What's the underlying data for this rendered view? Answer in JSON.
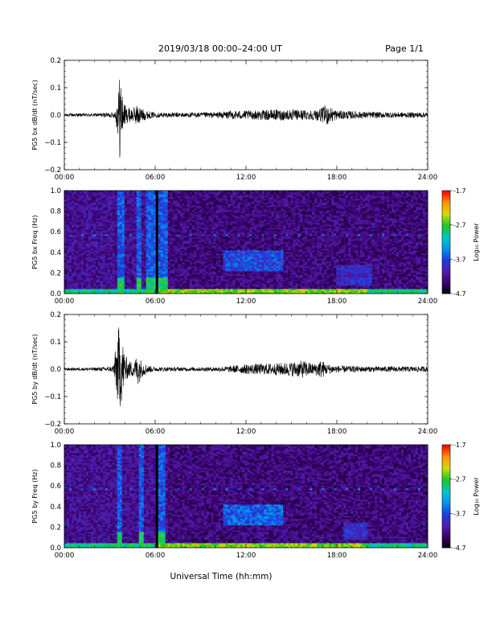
{
  "header": {
    "title": "2019/03/18   00:00–24:00 UT",
    "page": "Page 1/1"
  },
  "footer": {
    "xlabel": "Universal Time (hh:mm)"
  },
  "colors": {
    "waveform": "#000000",
    "spectrogram_background": "#3a1b8c"
  },
  "chart_data": [
    {
      "type": "line",
      "ylabel": "PG5 bx dB/dt (nT/sec)",
      "xlim_hours": [
        0,
        24
      ],
      "ylim": [
        -0.2,
        0.2
      ],
      "ytick_labels": [
        "0.2",
        "0.1",
        "0.0",
        "−0.1",
        "−0.2"
      ],
      "yticks": [
        0.2,
        0.1,
        0.0,
        -0.1,
        -0.2
      ],
      "xtick_labels": [
        "00:00",
        "06:00",
        "12:00",
        "18:00",
        "24:00"
      ],
      "xticks_hours": [
        0,
        6,
        12,
        18,
        24
      ],
      "envelope": {
        "x_hours": [
          0,
          2,
          3.3,
          3.5,
          3.6,
          3.7,
          3.8,
          3.9,
          4.1,
          4.5,
          4.9,
          5.1,
          5.5,
          6,
          8,
          10,
          11,
          12,
          14,
          15,
          16.5,
          17,
          17.3,
          18,
          20,
          22,
          24
        ],
        "amplitude": [
          0.006,
          0.006,
          0.01,
          0.06,
          0.12,
          0.19,
          0.1,
          0.05,
          0.03,
          0.025,
          0.04,
          0.025,
          0.015,
          0.009,
          0.009,
          0.01,
          0.016,
          0.016,
          0.02,
          0.02,
          0.018,
          0.025,
          0.04,
          0.017,
          0.012,
          0.01,
          0.01
        ]
      }
    },
    {
      "type": "heatmap",
      "ylabel": "PG5 bx Freq (Hz)",
      "xlim_hours": [
        0,
        24
      ],
      "ylim": [
        0,
        1.0
      ],
      "ytick_labels": [
        "1.0",
        "0.8",
        "0.6",
        "0.4",
        "0.2",
        "0.0"
      ],
      "yticks": [
        1.0,
        0.8,
        0.6,
        0.4,
        0.2,
        0.0
      ],
      "xtick_labels": [
        "00:00",
        "06:00",
        "12:00",
        "18:00",
        "24:00"
      ],
      "xticks_hours": [
        0,
        6,
        12,
        18,
        24
      ],
      "colorbar": {
        "label": "Log₁₀ Power",
        "range": [
          -4.7,
          -1.7
        ],
        "tick_labels": [
          "-1.7",
          "-2.7",
          "-3.7",
          "-4.7"
        ],
        "ticks": [
          -1.7,
          -2.7,
          -3.7,
          -4.7
        ]
      },
      "features": {
        "broadband_bursts_hours": [
          [
            3.5,
            3.9
          ],
          [
            4.8,
            5.1
          ],
          [
            5.4,
            6.9
          ]
        ],
        "data_gap_hours": [
          [
            6.0,
            6.15
          ]
        ],
        "line_frequency_hz": 0.57,
        "low_freq_band_hz": [
          0.0,
          0.05
        ],
        "enhanced_regions": [
          {
            "x_hours": [
              10.5,
              14.5
            ],
            "y_hz": [
              0.22,
              0.42
            ],
            "level": -3.4
          },
          {
            "x_hours": [
              18.0,
              20.3
            ],
            "y_hz": [
              0.08,
              0.28
            ],
            "level": -3.6
          }
        ]
      }
    },
    {
      "type": "line",
      "ylabel": "PG5 by dB/dt (nT/sec)",
      "xlim_hours": [
        0,
        24
      ],
      "ylim": [
        -0.2,
        0.2
      ],
      "ytick_labels": [
        "0.2",
        "0.1",
        "0.0",
        "−0.1",
        "−0.2"
      ],
      "yticks": [
        0.2,
        0.1,
        0.0,
        -0.1,
        -0.2
      ],
      "xtick_labels": [
        "00:00",
        "06:00",
        "12:00",
        "18:00",
        "24:00"
      ],
      "xticks_hours": [
        0,
        6,
        12,
        18,
        24
      ],
      "envelope": {
        "x_hours": [
          0,
          2,
          3.2,
          3.4,
          3.6,
          3.8,
          4.0,
          4.2,
          4.6,
          4.9,
          5.1,
          5.5,
          6,
          8,
          10,
          11,
          12,
          14,
          15,
          15.8,
          16.5,
          17,
          17.3,
          18,
          20,
          22,
          24
        ],
        "amplitude": [
          0.005,
          0.006,
          0.01,
          0.08,
          0.16,
          0.12,
          0.06,
          0.03,
          0.03,
          0.06,
          0.03,
          0.015,
          0.008,
          0.007,
          0.008,
          0.012,
          0.018,
          0.022,
          0.026,
          0.032,
          0.02,
          0.035,
          0.02,
          0.013,
          0.01,
          0.01,
          0.01
        ]
      }
    },
    {
      "type": "heatmap",
      "ylabel": "PG5 by Freq (Hz)",
      "xlim_hours": [
        0,
        24
      ],
      "ylim": [
        0,
        1.0
      ],
      "ytick_labels": [
        "1.0",
        "0.8",
        "0.6",
        "0.4",
        "0.2",
        "0.0"
      ],
      "yticks": [
        1.0,
        0.8,
        0.6,
        0.4,
        0.2,
        0.0
      ],
      "xtick_labels": [
        "00:00",
        "06:00",
        "12:00",
        "18:00",
        "24:00"
      ],
      "xticks_hours": [
        0,
        6,
        12,
        18,
        24
      ],
      "colorbar": {
        "label": "Log₁₀ Power",
        "range": [
          -4.7,
          -1.7
        ],
        "tick_labels": [
          "-1.7",
          "-2.7",
          "-3.7",
          "-4.7"
        ],
        "ticks": [
          -1.7,
          -2.7,
          -3.7,
          -4.7
        ]
      },
      "features": {
        "broadband_bursts_hours": [
          [
            3.5,
            3.8
          ],
          [
            5.0,
            5.2
          ],
          [
            6.2,
            6.6
          ]
        ],
        "data_gap_hours": [
          [
            6.0,
            6.15
          ]
        ],
        "line_frequency_hz": 0.57,
        "low_freq_band_hz": [
          0.0,
          0.05
        ],
        "enhanced_regions": [
          {
            "x_hours": [
              10.5,
              14.5
            ],
            "y_hz": [
              0.22,
              0.42
            ],
            "level": -3.3
          },
          {
            "x_hours": [
              18.5,
              20.0
            ],
            "y_hz": [
              0.08,
              0.25
            ],
            "level": -3.6
          }
        ]
      }
    }
  ]
}
